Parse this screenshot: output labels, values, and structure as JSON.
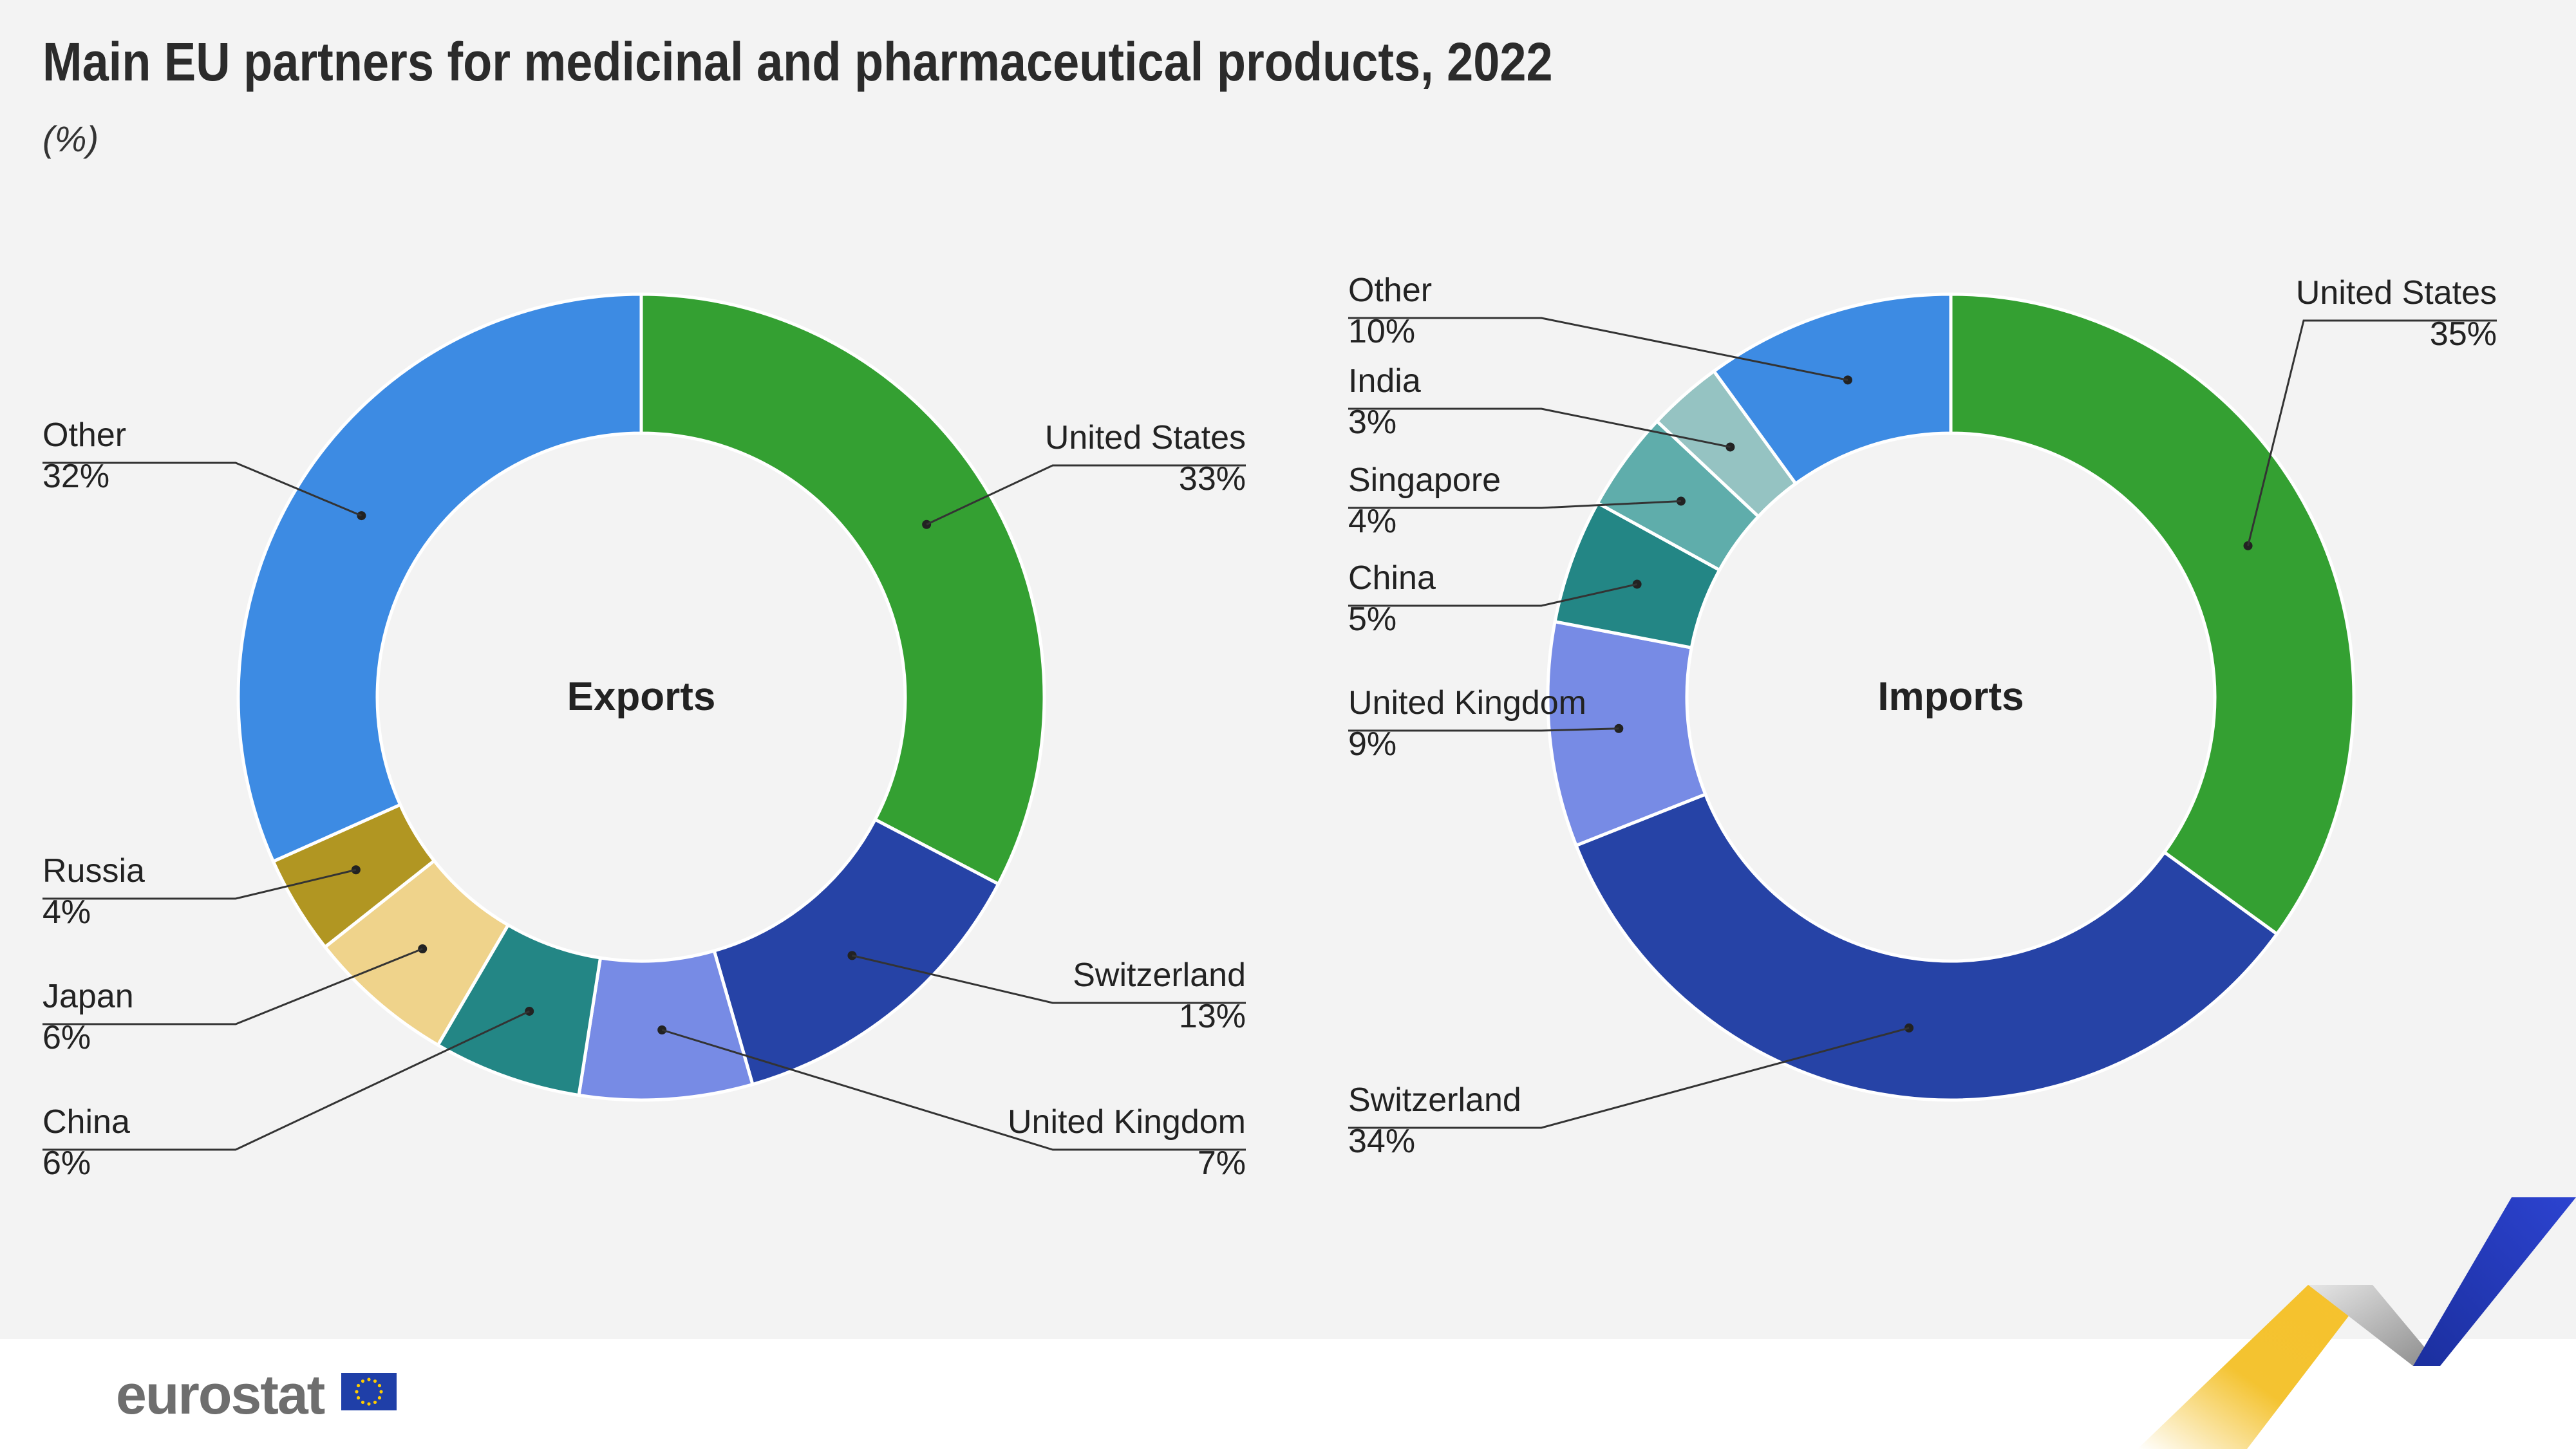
{
  "title": "Main EU partners for medicinal and pharmaceutical products, 2022",
  "subtitle": "(%)",
  "brand": "eurostat",
  "colors": {
    "United States": "#34a032",
    "Switzerland": "#2643a6",
    "United Kingdom": "#778be5",
    "China": "#238685",
    "Japan": "#efd38b",
    "Russia": "#b19622",
    "Other": "#3d8be3",
    "Singapore": "#5fadab",
    "India": "#95c3c2"
  },
  "chart_data": [
    {
      "type": "pie",
      "title": "Exports",
      "categories": [
        "United States",
        "Switzerland",
        "United Kingdom",
        "China",
        "Japan",
        "Russia",
        "Other"
      ],
      "values": [
        33,
        13,
        7,
        6,
        6,
        4,
        32
      ],
      "labels": [
        "33%",
        "13%",
        "7%",
        "6%",
        "6%",
        "4%",
        "32%"
      ]
    },
    {
      "type": "pie",
      "title": "Imports",
      "categories": [
        "United States",
        "Switzerland",
        "United Kingdom",
        "China",
        "Singapore",
        "India",
        "Other"
      ],
      "values": [
        35,
        34,
        9,
        5,
        4,
        3,
        10
      ],
      "labels": [
        "35%",
        "34%",
        "9%",
        "5%",
        "4%",
        "3%",
        "10%"
      ]
    }
  ]
}
